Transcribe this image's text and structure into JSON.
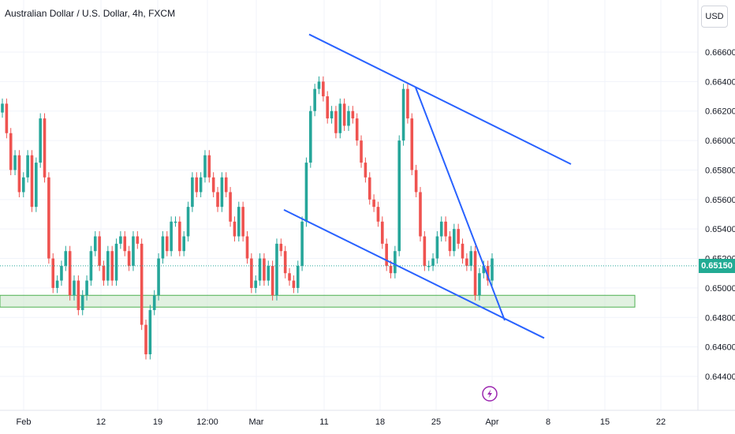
{
  "header": {
    "title": "Australian Dollar / U.S. Dollar, 4h, FXCM",
    "currency_label": "USD"
  },
  "colors": {
    "up": "#26a69a",
    "down": "#ef5350",
    "trendline": "#2962ff",
    "zone_fill": "#c8e6c9",
    "zone_stroke": "#4caf50",
    "badge": "#22ab94",
    "grid": "#f0f3fa",
    "event_icon": "#9c27b0"
  },
  "icons": {
    "event": "lightning-icon"
  },
  "chart_data": {
    "type": "candlestick",
    "title": "Australian Dollar / U.S. Dollar, 4h, FXCM",
    "ylim": [
      0.643,
      0.6692
    ],
    "y_ticks": [
      "0.66600",
      "0.66400",
      "0.66200",
      "0.66000",
      "0.65800",
      "0.65600",
      "0.65400",
      "0.65200",
      "0.65000",
      "0.64800",
      "0.64600",
      "0.64400"
    ],
    "x_ticks": [
      "Feb",
      "12",
      "19",
      "12:00",
      "Mar",
      "11",
      "18",
      "25",
      "Apr",
      "8",
      "15",
      "22"
    ],
    "last_price": "0.65150",
    "grid": true,
    "support_zone": [
      0.6487,
      0.6495
    ],
    "trendlines": [
      {
        "from": [
          "Mar 9",
          0.6672
        ],
        "to": [
          "Apr 10",
          0.6584
        ]
      },
      {
        "from": [
          "Mar 5",
          0.6553
        ],
        "to": [
          "Apr 6",
          0.6466
        ]
      },
      {
        "from": [
          "Mar 21",
          0.6636
        ],
        "to": [
          "Apr 2",
          0.6478
        ]
      }
    ],
    "series": [
      {
        "name": "price",
        "close": [
          0.6625,
          0.6605,
          0.658,
          0.659,
          0.6565,
          0.6575,
          0.659,
          0.6555,
          0.6585,
          0.6615,
          0.6575,
          0.652,
          0.65,
          0.6505,
          0.6515,
          0.6525,
          0.6495,
          0.6505,
          0.6485,
          0.6495,
          0.6505,
          0.6525,
          0.6535,
          0.6515,
          0.6505,
          0.6525,
          0.6505,
          0.653,
          0.6535,
          0.6525,
          0.6515,
          0.6535,
          0.653,
          0.6475,
          0.6455,
          0.6485,
          0.6495,
          0.652,
          0.6535,
          0.6525,
          0.6545,
          0.6545,
          0.6525,
          0.6535,
          0.6555,
          0.6575,
          0.6565,
          0.6575,
          0.659,
          0.6575,
          0.6565,
          0.6555,
          0.6575,
          0.6565,
          0.6545,
          0.6535,
          0.6555,
          0.6535,
          0.652,
          0.65,
          0.6505,
          0.652,
          0.6505,
          0.6515,
          0.6495,
          0.653,
          0.6525,
          0.651,
          0.6505,
          0.65,
          0.6515,
          0.6545,
          0.6585,
          0.662,
          0.6635,
          0.664,
          0.663,
          0.6615,
          0.662,
          0.6605,
          0.6625,
          0.661,
          0.662,
          0.6615,
          0.66,
          0.6585,
          0.6575,
          0.656,
          0.6555,
          0.6545,
          0.653,
          0.6515,
          0.651,
          0.6525,
          0.66,
          0.6635,
          0.6615,
          0.658,
          0.6565,
          0.6535,
          0.6515,
          0.6515,
          0.652,
          0.6535,
          0.6545,
          0.6535,
          0.6525,
          0.654,
          0.653,
          0.652,
          0.6515,
          0.6525,
          0.6495,
          0.651,
          0.6515,
          0.6505,
          0.652
        ]
      }
    ]
  }
}
